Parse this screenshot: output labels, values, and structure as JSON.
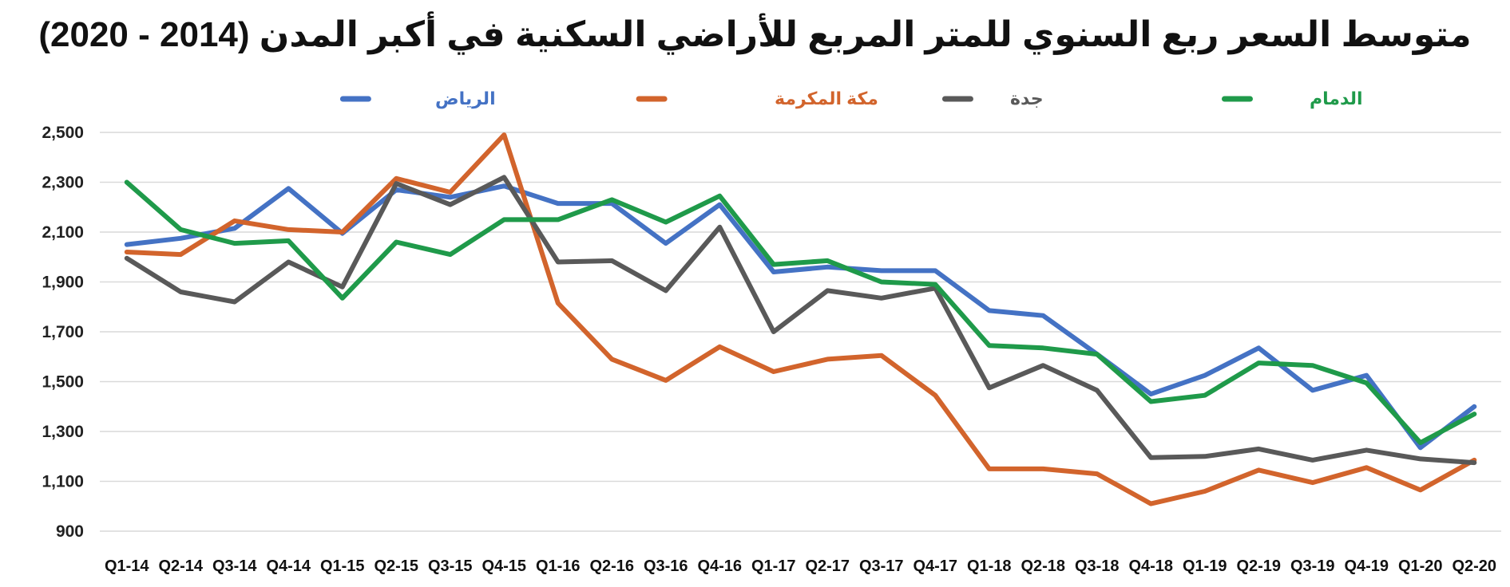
{
  "chart_data": {
    "type": "line",
    "title": "متوسط السعر ربع السنوي للمتر المربع للأراضي السكنية في أكبر المدن (2014 - 2020)",
    "xlabel": "",
    "ylabel": "",
    "ylim": [
      900,
      2500
    ],
    "yticks": [
      "900",
      "1,100",
      "1,300",
      "1,500",
      "1,700",
      "1,900",
      "2,100",
      "2,300",
      "2,500"
    ],
    "grid": "horizontal",
    "legend_position": "top",
    "categories": [
      "Q1-14",
      "Q2-14",
      "Q3-14",
      "Q4-14",
      "Q1-15",
      "Q2-15",
      "Q3-15",
      "Q4-15",
      "Q1-16",
      "Q2-16",
      "Q3-16",
      "Q4-16",
      "Q1-17",
      "Q2-17",
      "Q3-17",
      "Q4-17",
      "Q1-18",
      "Q2-18",
      "Q3-18",
      "Q4-18",
      "Q1-19",
      "Q2-19",
      "Q3-19",
      "Q4-19",
      "Q1-20",
      "Q2-20"
    ],
    "series": [
      {
        "name": "الرياض",
        "color": "#4472C4",
        "values": [
          2050,
          2075,
          2115,
          2275,
          2095,
          2270,
          2240,
          2285,
          2215,
          2215,
          2055,
          2210,
          1940,
          1960,
          1945,
          1945,
          1785,
          1765,
          1610,
          1450,
          1525,
          1635,
          1465,
          1525,
          1235,
          1400
        ]
      },
      {
        "name": "مكة المكرمة",
        "color": "#D2642C",
        "values": [
          2020,
          2010,
          2145,
          2110,
          2100,
          2315,
          2260,
          2490,
          1815,
          1590,
          1505,
          1640,
          1540,
          1590,
          1605,
          1445,
          1150,
          1150,
          1130,
          1010,
          1060,
          1145,
          1095,
          1155,
          1065,
          1185
        ]
      },
      {
        "name": "جدة",
        "color": "#595959",
        "values": [
          1995,
          1860,
          1820,
          1980,
          1880,
          2295,
          2210,
          2320,
          1980,
          1985,
          1865,
          2120,
          1700,
          1865,
          1835,
          1875,
          1475,
          1565,
          1465,
          1195,
          1200,
          1230,
          1185,
          1225,
          1190,
          1175
        ]
      },
      {
        "name": "الدمام",
        "color": "#1F9A4A",
        "values": [
          2300,
          2110,
          2055,
          2065,
          1835,
          2060,
          2010,
          2150,
          2150,
          2230,
          2140,
          2245,
          1970,
          1985,
          1900,
          1890,
          1645,
          1635,
          1610,
          1420,
          1445,
          1575,
          1565,
          1495,
          1255,
          1370
        ]
      }
    ]
  }
}
